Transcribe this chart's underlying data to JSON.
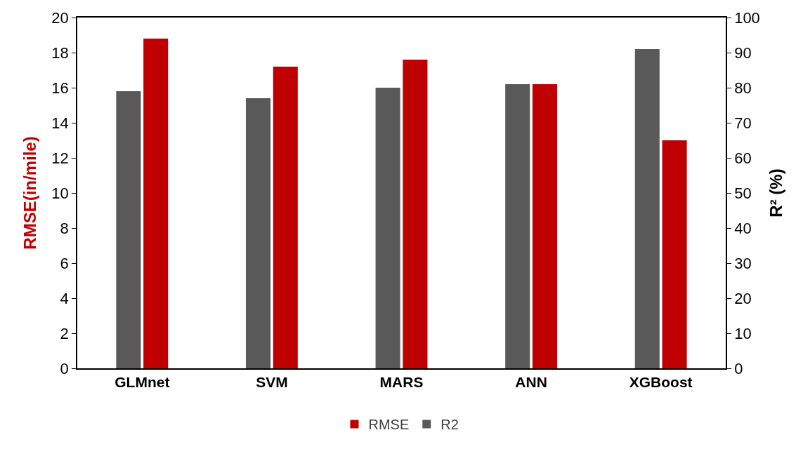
{
  "chart_data": {
    "type": "bar",
    "categories": [
      "GLMnet",
      "SVM",
      "MARS",
      "ANN",
      "XGBoost"
    ],
    "series": [
      {
        "name": "RMSE",
        "color": "#c00000",
        "values": [
          18.8,
          17.2,
          17.6,
          16.2,
          13.0
        ]
      },
      {
        "name": "R2",
        "color": "#595959",
        "axis": "y2",
        "values": [
          79,
          77,
          80,
          81,
          91
        ]
      }
    ],
    "ylabel": "RMSE(in/mile)",
    "y2label": "R² (%)",
    "ylim": [
      0,
      20
    ],
    "yticks": [
      0,
      2,
      4,
      6,
      8,
      10,
      12,
      14,
      16,
      18,
      20
    ],
    "y2lim": [
      0,
      100
    ],
    "y2ticks": [
      0,
      10,
      20,
      30,
      40,
      50,
      60,
      70,
      80,
      90,
      100
    ],
    "legend": "bottom"
  }
}
